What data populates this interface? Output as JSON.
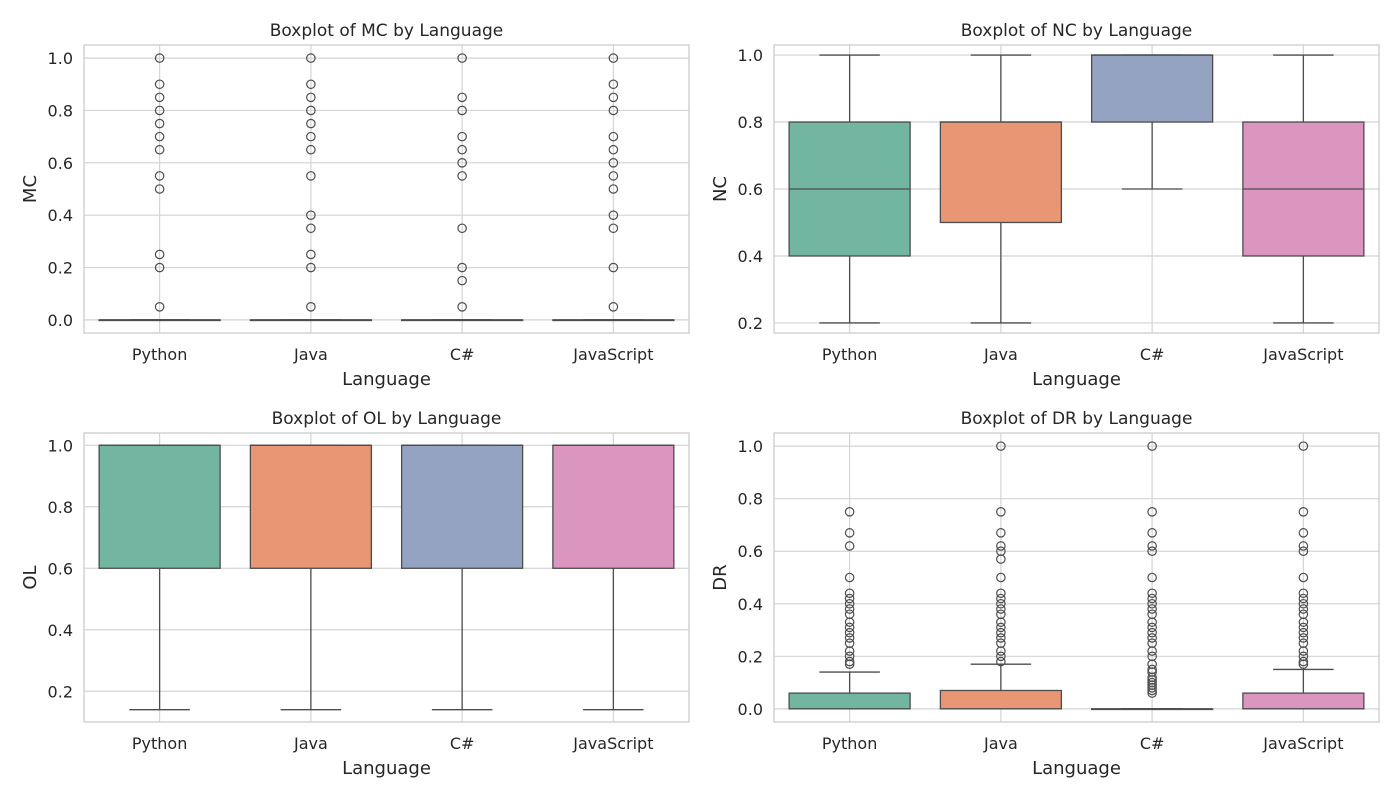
{
  "chart_data": [
    {
      "type": "boxplot",
      "title": "Boxplot of MC by Language",
      "xlabel": "Language",
      "ylabel": "MC",
      "ylim": [
        -0.05,
        1.05
      ],
      "yticks": [
        0.0,
        0.2,
        0.4,
        0.6,
        0.8,
        1.0
      ],
      "ytick_labels": [
        "0.0",
        "0.2",
        "0.4",
        "0.6",
        "0.8",
        "1.0"
      ],
      "grid": true,
      "categories": [
        "Python",
        "Java",
        "C#",
        "JavaScript"
      ],
      "boxes": [
        {
          "whislo": 0,
          "q1": 0,
          "med": 0,
          "q3": 0,
          "whishi": 0,
          "fliers": [
            0.05,
            0.2,
            0.25,
            0.5,
            0.55,
            0.65,
            0.7,
            0.75,
            0.8,
            0.85,
            0.9,
            1.0
          ]
        },
        {
          "whislo": 0,
          "q1": 0,
          "med": 0,
          "q3": 0,
          "whishi": 0,
          "fliers": [
            0.05,
            0.2,
            0.25,
            0.35,
            0.4,
            0.55,
            0.65,
            0.7,
            0.75,
            0.8,
            0.85,
            0.9,
            1.0
          ]
        },
        {
          "whislo": 0,
          "q1": 0,
          "med": 0,
          "q3": 0,
          "whishi": 0,
          "fliers": [
            0.05,
            0.15,
            0.2,
            0.35,
            0.55,
            0.6,
            0.65,
            0.7,
            0.8,
            0.85,
            1.0
          ]
        },
        {
          "whislo": 0,
          "q1": 0,
          "med": 0,
          "q3": 0,
          "whishi": 0,
          "fliers": [
            0.05,
            0.2,
            0.35,
            0.4,
            0.5,
            0.55,
            0.6,
            0.65,
            0.7,
            0.8,
            0.85,
            0.9,
            1.0
          ]
        }
      ]
    },
    {
      "type": "boxplot",
      "title": "Boxplot of NC by Language",
      "xlabel": "Language",
      "ylabel": "NC",
      "ylim": [
        0.17,
        1.03
      ],
      "yticks": [
        0.2,
        0.4,
        0.6,
        0.8,
        1.0
      ],
      "ytick_labels": [
        "0.2",
        "0.4",
        "0.6",
        "0.8",
        "1.0"
      ],
      "grid": true,
      "categories": [
        "Python",
        "Java",
        "C#",
        "JavaScript"
      ],
      "boxes": [
        {
          "whislo": 0.2,
          "q1": 0.4,
          "med": 0.6,
          "q3": 0.8,
          "whishi": 1.0,
          "fliers": []
        },
        {
          "whislo": 0.2,
          "q1": 0.5,
          "med": 0.8,
          "q3": 0.8,
          "whishi": 1.0,
          "fliers": []
        },
        {
          "whislo": 0.6,
          "q1": 0.8,
          "med": 1.0,
          "q3": 1.0,
          "whishi": 1.0,
          "fliers": []
        },
        {
          "whislo": 0.2,
          "q1": 0.4,
          "med": 0.6,
          "q3": 0.8,
          "whishi": 1.0,
          "fliers": []
        }
      ]
    },
    {
      "type": "boxplot",
      "title": "Boxplot of OL by Language",
      "xlabel": "Language",
      "ylabel": "OL",
      "ylim": [
        0.1,
        1.04
      ],
      "yticks": [
        0.2,
        0.4,
        0.6,
        0.8,
        1.0
      ],
      "ytick_labels": [
        "0.2",
        "0.4",
        "0.6",
        "0.8",
        "1.0"
      ],
      "grid": true,
      "categories": [
        "Python",
        "Java",
        "C#",
        "JavaScript"
      ],
      "boxes": [
        {
          "whislo": 0.14,
          "q1": 0.6,
          "med": 1.0,
          "q3": 1.0,
          "whishi": 1.0,
          "fliers": []
        },
        {
          "whislo": 0.14,
          "q1": 0.6,
          "med": 1.0,
          "q3": 1.0,
          "whishi": 1.0,
          "fliers": []
        },
        {
          "whislo": 0.14,
          "q1": 0.6,
          "med": 1.0,
          "q3": 1.0,
          "whishi": 1.0,
          "fliers": []
        },
        {
          "whislo": 0.14,
          "q1": 0.6,
          "med": 1.0,
          "q3": 1.0,
          "whishi": 1.0,
          "fliers": []
        }
      ]
    },
    {
      "type": "boxplot",
      "title": "Boxplot of DR by Language",
      "xlabel": "Language",
      "ylabel": "DR",
      "ylim": [
        -0.05,
        1.05
      ],
      "yticks": [
        0.0,
        0.2,
        0.4,
        0.6,
        0.8,
        1.0
      ],
      "ytick_labels": [
        "0.0",
        "0.2",
        "0.4",
        "0.6",
        "0.8",
        "1.0"
      ],
      "grid": true,
      "categories": [
        "Python",
        "Java",
        "C#",
        "JavaScript"
      ],
      "boxes": [
        {
          "whislo": 0,
          "q1": 0,
          "med": 0,
          "q3": 0.06,
          "whishi": 0.14,
          "fliers": [
            0.17,
            0.18,
            0.2,
            0.22,
            0.25,
            0.27,
            0.29,
            0.31,
            0.33,
            0.36,
            0.38,
            0.4,
            0.42,
            0.44,
            0.5,
            0.62,
            0.67,
            0.75
          ]
        },
        {
          "whislo": 0,
          "q1": 0,
          "med": 0,
          "q3": 0.07,
          "whishi": 0.17,
          "fliers": [
            0.18,
            0.2,
            0.22,
            0.25,
            0.27,
            0.29,
            0.31,
            0.33,
            0.36,
            0.38,
            0.4,
            0.42,
            0.44,
            0.5,
            0.57,
            0.6,
            0.62,
            0.67,
            0.75,
            1.0
          ]
        },
        {
          "whislo": 0,
          "q1": 0,
          "med": 0,
          "q3": 0,
          "whishi": 0,
          "fliers": [
            0.06,
            0.07,
            0.08,
            0.09,
            0.1,
            0.11,
            0.12,
            0.14,
            0.15,
            0.17,
            0.2,
            0.22,
            0.25,
            0.27,
            0.29,
            0.31,
            0.33,
            0.36,
            0.38,
            0.4,
            0.42,
            0.44,
            0.5,
            0.6,
            0.62,
            0.67,
            0.75,
            1.0
          ]
        },
        {
          "whislo": 0,
          "q1": 0,
          "med": 0,
          "q3": 0.06,
          "whishi": 0.15,
          "fliers": [
            0.17,
            0.18,
            0.2,
            0.22,
            0.25,
            0.27,
            0.29,
            0.31,
            0.33,
            0.36,
            0.38,
            0.4,
            0.42,
            0.44,
            0.5,
            0.6,
            0.62,
            0.67,
            0.75,
            1.0
          ]
        }
      ]
    }
  ],
  "palette": {
    "Python": "#72b6a1",
    "Java": "#e99674",
    "C#": "#95a3c3",
    "JavaScript": "#db96c0"
  }
}
